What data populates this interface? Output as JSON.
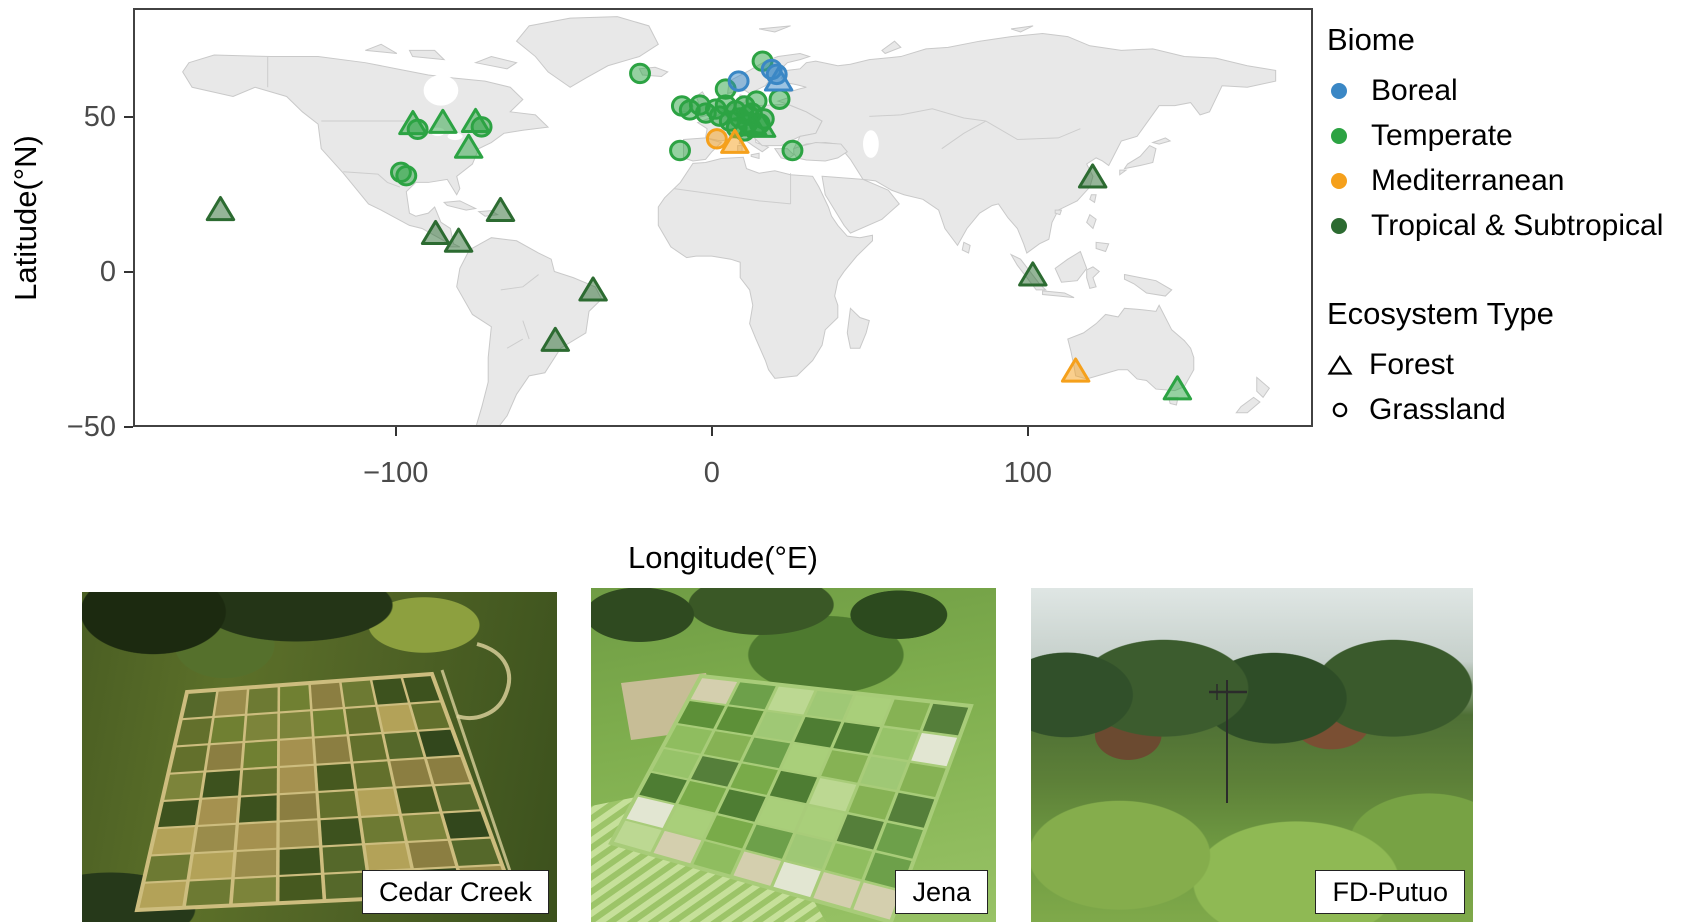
{
  "figure": {
    "map": {
      "xlabel": "Longitude(°E)",
      "ylabel": "Latitude(°N)",
      "x_ticks": [
        {
          "value": -100,
          "label": "−100"
        },
        {
          "value": 0,
          "label": "0"
        },
        {
          "value": 100,
          "label": "100"
        }
      ],
      "y_ticks": [
        {
          "value": 50,
          "label": "50"
        },
        {
          "value": 0,
          "label": "0"
        },
        {
          "value": -50,
          "label": "−50"
        }
      ]
    },
    "legend": {
      "biome_title": "Biome",
      "biomes": [
        {
          "key": "boreal",
          "label": "Boreal",
          "color": "#3A87C5"
        },
        {
          "key": "temperate",
          "label": "Temperate",
          "color": "#2CA343"
        },
        {
          "key": "mediterranean",
          "label": "Mediterranean",
          "color": "#F5A01B"
        },
        {
          "key": "tropical",
          "label": "Tropical & Subtropical",
          "color": "#2C6B31"
        }
      ],
      "ecosystem_title": "Ecosystem Type",
      "ecosystems": [
        {
          "label": "Forest",
          "marker": "triangle"
        },
        {
          "label": "Grassland",
          "marker": "circle"
        }
      ]
    },
    "photos": [
      {
        "caption": "Cedar Creek"
      },
      {
        "caption": "Jena"
      },
      {
        "caption": "FD-Putuo"
      }
    ]
  },
  "chart_data": {
    "type": "scatter",
    "subtype": "world-map-sites",
    "xlabel": "Longitude(°E)",
    "ylabel": "Latitude(°N)",
    "xlim": [
      -183,
      190
    ],
    "ylim": [
      -50,
      85
    ],
    "x_ticks": [
      -100,
      0,
      100
    ],
    "y_ticks": [
      50,
      0,
      -50
    ],
    "legend_position": "right",
    "sites": [
      {
        "lon": -22.8,
        "lat": 64.5,
        "biome": "temperate",
        "eco": "Grassland"
      },
      {
        "lon": 4.4,
        "lat": 59.4,
        "biome": "temperate",
        "eco": "Grassland"
      },
      {
        "lon": 16.1,
        "lat": 68.5,
        "biome": "temperate",
        "eco": "Grassland"
      },
      {
        "lon": 21.5,
        "lat": 56.1,
        "biome": "temperate",
        "eco": "Grassland"
      },
      {
        "lon": -9.5,
        "lat": 53.9,
        "biome": "temperate",
        "eco": "Grassland"
      },
      {
        "lon": -7.0,
        "lat": 52.6,
        "biome": "temperate",
        "eco": "Grassland"
      },
      {
        "lon": -3.8,
        "lat": 54.2,
        "biome": "temperate",
        "eco": "Grassland"
      },
      {
        "lon": -1.9,
        "lat": 51.6,
        "biome": "temperate",
        "eco": "Grassland"
      },
      {
        "lon": 1.3,
        "lat": 52.9,
        "biome": "temperate",
        "eco": "Grassland"
      },
      {
        "lon": 2.5,
        "lat": 50.6,
        "biome": "temperate",
        "eco": "Grassland"
      },
      {
        "lon": 4.4,
        "lat": 54.2,
        "biome": "temperate",
        "eco": "Grassland"
      },
      {
        "lon": 5.7,
        "lat": 49.0,
        "biome": "temperate",
        "eco": "Grassland"
      },
      {
        "lon": 7.6,
        "lat": 52.3,
        "biome": "temperate",
        "eco": "Grassland"
      },
      {
        "lon": 8.9,
        "lat": 50.0,
        "biome": "temperate",
        "eco": "Grassland"
      },
      {
        "lon": 10.4,
        "lat": 53.9,
        "biome": "temperate",
        "eco": "Grassland"
      },
      {
        "lon": 11.6,
        "lat": 50.9,
        "biome": "temperate",
        "eco": "Grassland"
      },
      {
        "lon": 11.4,
        "lat": 48.4,
        "biome": "temperate",
        "eco": "Grassland"
      },
      {
        "lon": 12.7,
        "lat": 51.6,
        "biome": "temperate",
        "eco": "Grassland"
      },
      {
        "lon": 14.2,
        "lat": 55.5,
        "biome": "temperate",
        "eco": "Grassland"
      },
      {
        "lon": 16.5,
        "lat": 49.7,
        "biome": "temperate",
        "eco": "Grassland"
      },
      {
        "lon": 15.2,
        "lat": 48.1,
        "biome": "temperate",
        "eco": "Grassland"
      },
      {
        "lon": 7.9,
        "lat": 46.8,
        "biome": "temperate",
        "eco": "Grassland"
      },
      {
        "lon": 10.4,
        "lat": 45.8,
        "biome": "temperate",
        "eco": "Grassland"
      },
      {
        "lon": -10.1,
        "lat": 39.4,
        "biome": "temperate",
        "eco": "Grassland"
      },
      {
        "lon": 25.6,
        "lat": 39.4,
        "biome": "temperate",
        "eco": "Grassland"
      },
      {
        "lon": -93.4,
        "lat": 46.3,
        "biome": "temperate",
        "eco": "Grassland"
      },
      {
        "lon": -73.1,
        "lat": 47.1,
        "biome": "temperate",
        "eco": "Grassland"
      },
      {
        "lon": -98.7,
        "lat": 32.3,
        "biome": "temperate",
        "eco": "Grassland"
      },
      {
        "lon": -97.0,
        "lat": 31.2,
        "biome": "temperate",
        "eco": "Grassland"
      },
      {
        "lon": 8.5,
        "lat": 62.0,
        "biome": "boreal",
        "eco": "Grassland"
      },
      {
        "lon": 19.0,
        "lat": 65.8,
        "biome": "boreal",
        "eco": "Grassland"
      },
      {
        "lon": 20.6,
        "lat": 64.2,
        "biome": "boreal",
        "eco": "Grassland"
      },
      {
        "lon": 1.6,
        "lat": 43.2,
        "biome": "mediterranean",
        "eco": "Grassland"
      },
      {
        "lon": 15.8,
        "lat": 46.8,
        "biome": "temperate",
        "eco": "Forest"
      },
      {
        "lon": 13.0,
        "lat": 47.3,
        "biome": "temperate",
        "eco": "Forest"
      },
      {
        "lon": -94.9,
        "lat": 47.7,
        "biome": "temperate",
        "eco": "Forest"
      },
      {
        "lon": -85.4,
        "lat": 48.1,
        "biome": "temperate",
        "eco": "Forest"
      },
      {
        "lon": -75.0,
        "lat": 48.4,
        "biome": "temperate",
        "eco": "Forest"
      },
      {
        "lon": -77.2,
        "lat": 40.0,
        "biome": "temperate",
        "eco": "Forest"
      },
      {
        "lon": 147.8,
        "lat": -38.7,
        "biome": "temperate",
        "eco": "Forest"
      },
      {
        "lon": 21.2,
        "lat": 61.9,
        "biome": "boreal",
        "eco": "Forest"
      },
      {
        "lon": 7.3,
        "lat": 41.6,
        "biome": "mediterranean",
        "eco": "Forest"
      },
      {
        "lon": 115.5,
        "lat": -32.9,
        "biome": "mediterranean",
        "eco": "Forest"
      },
      {
        "lon": -156.0,
        "lat": 19.7,
        "biome": "tropical",
        "eco": "Forest"
      },
      {
        "lon": -67.1,
        "lat": 19.4,
        "biome": "tropical",
        "eco": "Forest"
      },
      {
        "lon": -87.7,
        "lat": 11.9,
        "biome": "tropical",
        "eco": "Forest"
      },
      {
        "lon": -80.4,
        "lat": 9.4,
        "biome": "tropical",
        "eco": "Forest"
      },
      {
        "lon": -37.7,
        "lat": -6.5,
        "biome": "tropical",
        "eco": "Forest"
      },
      {
        "lon": -49.7,
        "lat": -22.9,
        "biome": "tropical",
        "eco": "Forest"
      },
      {
        "lon": 120.9,
        "lat": 30.3,
        "biome": "tropical",
        "eco": "Forest"
      },
      {
        "lon": 101.9,
        "lat": -1.6,
        "biome": "tropical",
        "eco": "Forest"
      }
    ]
  }
}
